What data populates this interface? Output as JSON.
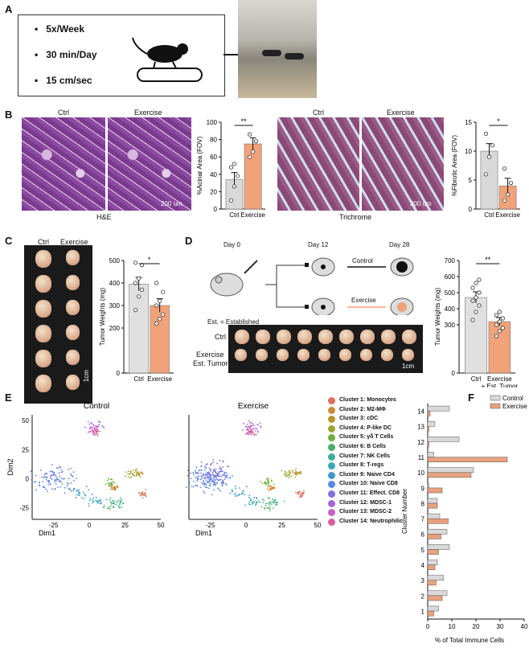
{
  "panel_labels": {
    "a": "A",
    "b": "B",
    "c": "C",
    "d": "D",
    "e": "E",
    "f": "F"
  },
  "panelA": {
    "bullets": [
      "5x/Week",
      "30 min/Day",
      "15 cm/sec"
    ],
    "bullet_glyph": "•"
  },
  "panelB": {
    "he_ctrl": "Ctrl",
    "he_ex": "Exercise",
    "he_caption": "H&E",
    "he_scale": "200 um",
    "tri_ctrl": "Ctrl",
    "tri_ex": "Exercise",
    "tri_caption": "Trichrome",
    "tri_scale": "200 um"
  },
  "panelC": {
    "ctrl": "Ctrl",
    "ex": "Exercise",
    "scale": "1cm"
  },
  "panelD": {
    "day0": "Day 0",
    "day12": "Day 12",
    "day28": "Day 28",
    "control": "Control",
    "exercise": "Exercise",
    "est": "Est. = Established",
    "row_ctrl": "Ctrl",
    "row_ex1": "Exercise",
    "row_ex2": "Est. Tumor",
    "scale": "1cm"
  },
  "panelE": {
    "title_ctrl": "Control",
    "title_ex": "Exercise",
    "xlabel": "Dim1",
    "ylabel": "Dim2",
    "xticks": [
      "-25",
      "0",
      "25",
      "50"
    ],
    "yticks": [
      "50",
      "25",
      "0",
      "-25"
    ],
    "clusters": [
      {
        "label": "Cluster 1: Monocytes",
        "color": "#d9725e"
      },
      {
        "label": "Cluster 2: M2-MΦ",
        "color": "#c98a3a"
      },
      {
        "label": "Cluster 3: cDC",
        "color": "#b8962f"
      },
      {
        "label": "Cluster 4: P-like DC",
        "color": "#9aa32e"
      },
      {
        "label": "Cluster 5: γδ T Cells",
        "color": "#6fae3c"
      },
      {
        "label": "Cluster 6: B Cells",
        "color": "#4fae6a"
      },
      {
        "label": "Cluster 7: NK Cells",
        "color": "#3fae96"
      },
      {
        "label": "Cluster 8: T-regs",
        "color": "#3aa6b5"
      },
      {
        "label": "Cluster 9: Naive CD4",
        "color": "#3f98cf"
      },
      {
        "label": "Cluster 10: Naive CD8",
        "color": "#5a86e0"
      },
      {
        "label": "Cluster 11: Effect. CD8",
        "color": "#7f74e0"
      },
      {
        "label": "Cluster 12: MDSC-1",
        "color": "#a964d8"
      },
      {
        "label": "Cluster 13: MDSC-2",
        "color": "#c95ec8"
      },
      {
        "label": "Cluster 14: Neutrophilic",
        "color": "#d95f9e"
      }
    ]
  },
  "chart_data": [
    {
      "type": "bar",
      "panel": "B-left",
      "categories": [
        "Ctrl",
        "Exercise"
      ],
      "values": [
        34,
        75
      ],
      "errors": [
        8,
        7
      ],
      "points": [
        [
          10,
          26,
          38,
          48,
          52
        ],
        [
          60,
          66,
          78,
          86
        ]
      ],
      "ylabel": "%Acinar Area (FOV)",
      "ylim": [
        0,
        100
      ],
      "yticks": [
        0,
        20,
        40,
        60,
        80,
        100
      ],
      "significance": "**",
      "colors": [
        "#d9d9d9",
        "#f0a27a"
      ]
    },
    {
      "type": "bar",
      "panel": "B-right",
      "categories": [
        "Ctrl",
        "Exercise"
      ],
      "values": [
        10,
        4
      ],
      "errors": [
        1.3,
        1.3
      ],
      "points": [
        [
          6,
          9,
          11,
          13
        ],
        [
          1.5,
          2.5,
          4.5,
          7
        ]
      ],
      "ylabel": "%Fibrotic Area (FOV)",
      "ylim": [
        0,
        15
      ],
      "yticks": [
        0,
        5,
        10,
        15
      ],
      "significance": "*",
      "colors": [
        "#d9d9d9",
        "#f0a27a"
      ]
    },
    {
      "type": "bar",
      "panel": "C",
      "categories": [
        "Ctrl",
        "Exercise"
      ],
      "values": [
        395,
        300
      ],
      "errors": [
        30,
        30
      ],
      "points": [
        [
          280,
          340,
          370,
          400,
          420,
          480,
          490
        ],
        [
          220,
          240,
          260,
          300,
          320,
          360,
          400
        ]
      ],
      "ylabel": "Tumor Weights (mg)",
      "ylim": [
        0,
        500
      ],
      "yticks": [
        0,
        200,
        300,
        400,
        500
      ],
      "significance": "*",
      "colors": [
        "#e0e0e0",
        "#f0a27a"
      ]
    },
    {
      "type": "bar",
      "panel": "D",
      "categories": [
        "Ctrl",
        "Exercise\n+ Est. Tumor"
      ],
      "values": [
        470,
        320
      ],
      "errors": [
        35,
        25
      ],
      "points": [
        [
          330,
          380,
          420,
          450,
          470,
          500,
          530,
          560,
          580
        ],
        [
          230,
          260,
          280,
          300,
          320,
          340,
          360,
          380
        ]
      ],
      "ylabel": "Tumor Weights (mg)",
      "ylim": [
        0,
        700
      ],
      "yticks": [
        0,
        300,
        400,
        500,
        600,
        700
      ],
      "significance": "**",
      "colors": [
        "#e0e0e0",
        "#f0a27a"
      ]
    },
    {
      "type": "bar",
      "panel": "F",
      "orientation": "horizontal",
      "categories": [
        "1",
        "2",
        "3",
        "4",
        "5",
        "6",
        "7",
        "8",
        "9",
        "10",
        "11",
        "12",
        "13",
        "14"
      ],
      "series": [
        {
          "name": "Control",
          "values": [
            4.5,
            8,
            6.5,
            4,
            9,
            8,
            5,
            4,
            0.5,
            19,
            2.5,
            13,
            3,
            9
          ],
          "color": "#d9d9d9"
        },
        {
          "name": "Exercise",
          "values": [
            2.5,
            6,
            3.5,
            3,
            4.5,
            5.5,
            8.5,
            4,
            6,
            18,
            33,
            0.5,
            0.5,
            1
          ],
          "color": "#e8a17f"
        }
      ],
      "xlabel": "% of Total Immune Cells",
      "ylabel": "Cluster Number",
      "xlim": [
        0,
        40
      ],
      "xticks": [
        0,
        10,
        20,
        30,
        40
      ]
    }
  ]
}
